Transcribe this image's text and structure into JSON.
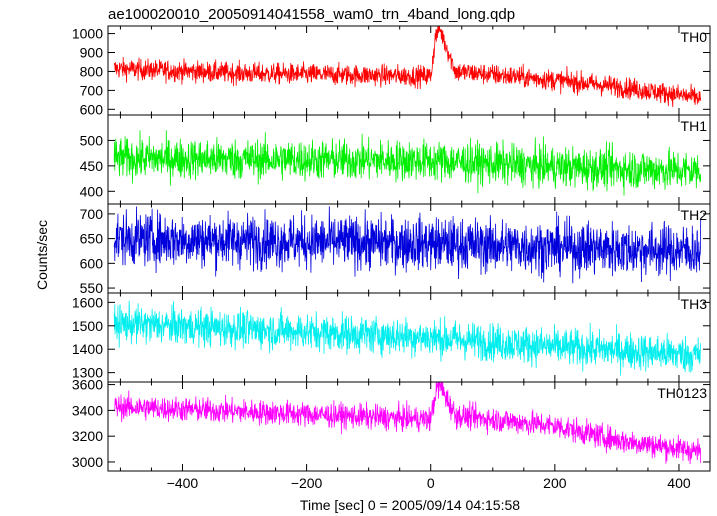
{
  "chart_data": {
    "type": "line",
    "title": "ae100020010_20050914041558_wam0_trn_4band_long.qdp",
    "xlabel": "Time [sec] 0 = 2005/09/14 04:15:58",
    "ylabel": "Counts/sec",
    "xlim": [
      -520,
      450
    ],
    "x_ticks": [
      -400,
      -200,
      0,
      200,
      400
    ],
    "x_tick_labels": [
      "−400",
      "−200",
      "0",
      "200",
      "400"
    ],
    "x_data_range": [
      -510,
      435
    ],
    "grid": false,
    "legend": "none",
    "series": [
      {
        "name": "TH0",
        "color": "#ff0000",
        "ylim": [
          570,
          1040
        ],
        "y_ticks": [
          600,
          700,
          800,
          900,
          1000
        ],
        "noise": 28,
        "profile": [
          [
            -510,
            815
          ],
          [
            -300,
            790
          ],
          [
            -100,
            780
          ],
          [
            0,
            775
          ],
          [
            8,
            990
          ],
          [
            14,
            1030
          ],
          [
            40,
            800
          ],
          [
            200,
            755
          ],
          [
            300,
            720
          ],
          [
            435,
            660
          ]
        ]
      },
      {
        "name": "TH1",
        "color": "#00ee00",
        "ylim": [
          375,
          550
        ],
        "y_ticks": [
          400,
          450,
          500
        ],
        "noise": 20,
        "profile": [
          [
            -510,
            465
          ],
          [
            0,
            460
          ],
          [
            200,
            448
          ],
          [
            435,
            440
          ]
        ]
      },
      {
        "name": "TH2",
        "color": "#0000dd",
        "ylim": [
          540,
          720
        ],
        "y_ticks": [
          550,
          600,
          650,
          700
        ],
        "noise": 27,
        "profile": [
          [
            -510,
            650
          ],
          [
            0,
            640
          ],
          [
            200,
            632
          ],
          [
            435,
            625
          ]
        ]
      },
      {
        "name": "TH3",
        "color": "#00eeee",
        "ylim": [
          1260,
          1640
        ],
        "y_ticks": [
          1300,
          1400,
          1500,
          1600
        ],
        "noise": 40,
        "profile": [
          [
            -510,
            1510
          ],
          [
            -200,
            1475
          ],
          [
            0,
            1450
          ],
          [
            200,
            1410
          ],
          [
            435,
            1375
          ]
        ]
      },
      {
        "name": "TH0123",
        "color": "#ff00ff",
        "ylim": [
          2930,
          3620
        ],
        "y_ticks": [
          3000,
          3200,
          3400,
          3600
        ],
        "noise": 48,
        "profile": [
          [
            -510,
            3430
          ],
          [
            -300,
            3390
          ],
          [
            -100,
            3350
          ],
          [
            0,
            3330
          ],
          [
            8,
            3540
          ],
          [
            14,
            3600
          ],
          [
            40,
            3360
          ],
          [
            200,
            3280
          ],
          [
            300,
            3170
          ],
          [
            435,
            3080
          ]
        ]
      }
    ]
  }
}
